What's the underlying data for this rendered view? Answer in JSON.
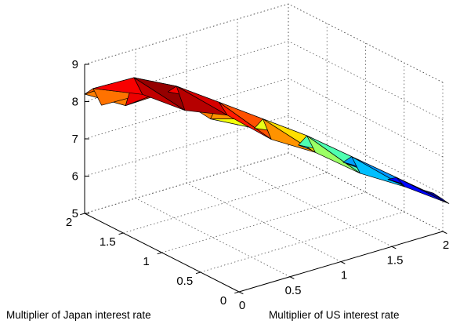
{
  "chart_data": {
    "type": "surface",
    "title": "",
    "xlabel": "Multiplier of US interest rate",
    "ylabel": "Multiplier of Japan interest rate",
    "zlabel": "",
    "xlim": [
      0,
      2
    ],
    "ylim": [
      0,
      2
    ],
    "zlim": [
      5,
      9
    ],
    "xticks": [
      "0",
      "0.5",
      "1",
      "1.5",
      "2"
    ],
    "yticks": [
      "0",
      "0.5",
      "1",
      "1.5",
      "2"
    ],
    "zticks": [
      "5",
      "6",
      "7",
      "8",
      "9"
    ],
    "grid": true,
    "colormap": "jet",
    "surface": {
      "u": [
        0,
        0.25,
        0.5,
        0.75,
        1.0,
        1.25,
        1.5,
        1.75,
        2.0
      ],
      "v": [
        0,
        0.5,
        1.0
      ],
      "x": [
        [
          0.0,
          0.25,
          0.5,
          0.75,
          1.0,
          1.25,
          1.5,
          1.75,
          2.0
        ],
        [
          0.03,
          0.28,
          0.53,
          0.78,
          1.03,
          1.28,
          1.53,
          1.78,
          2.03
        ],
        [
          0.06,
          0.31,
          0.56,
          0.81,
          1.06,
          1.31,
          1.56,
          1.81,
          2.06
        ]
      ],
      "y": [
        [
          2.0,
          1.8,
          1.58,
          1.36,
          1.12,
          0.88,
          0.63,
          0.38,
          0.12
        ],
        [
          1.93,
          1.73,
          1.51,
          1.29,
          1.05,
          0.81,
          0.56,
          0.31,
          0.05
        ],
        [
          1.86,
          1.66,
          1.44,
          1.22,
          0.98,
          0.74,
          0.49,
          0.24,
          0.0
        ]
      ],
      "z": [
        [
          8.2,
          7.9,
          8.3,
          7.6,
          7.4,
          7.0,
          6.6,
          6.2,
          5.9
        ],
        [
          8.4,
          8.7,
          8.5,
          8.1,
          7.7,
          7.3,
          6.8,
          6.3,
          5.8
        ],
        [
          8.0,
          8.3,
          7.9,
          7.8,
          7.2,
          6.9,
          6.4,
          6.1,
          5.7
        ]
      ],
      "c": [
        [
          7.3,
          7.6,
          8.0,
          7.4,
          7.0,
          6.6,
          6.1,
          5.8,
          5.6
        ],
        [
          7.9,
          8.6,
          8.6,
          8.1,
          7.8,
          7.3,
          6.8,
          6.2,
          5.7
        ],
        [
          7.5,
          8.2,
          8.4,
          8.3,
          8.0,
          7.5,
          6.6,
          6.0,
          5.5
        ]
      ]
    }
  }
}
